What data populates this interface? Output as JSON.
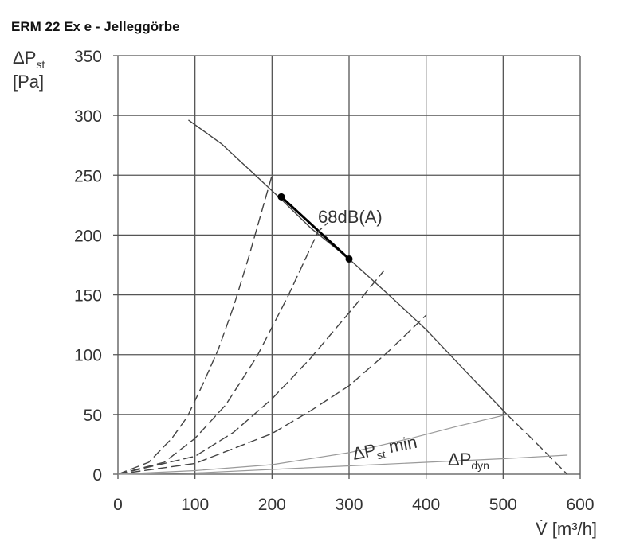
{
  "page_title": "ERM 22 Ex e - Jelleggörbe",
  "chart_data": {
    "type": "line",
    "title": "ERM 22 Ex e - Jelleggörbe",
    "xlabel": "V̇ [m³/h]",
    "ylabel": {
      "main": "ΔP",
      "sub": "st",
      "unit": "[Pa]"
    },
    "xlim": [
      0,
      600
    ],
    "ylim": [
      0,
      350
    ],
    "xticks": [
      0,
      100,
      200,
      300,
      400,
      500,
      600
    ],
    "yticks": [
      0,
      50,
      100,
      150,
      200,
      250,
      300,
      350
    ],
    "grid": true,
    "series": [
      {
        "key": "fan",
        "style": "solid",
        "color": "#444444",
        "width": 1.4,
        "x": [
          92,
          135,
          175,
          215,
          250,
          300,
          350,
          400,
          450,
          505
        ],
        "y": [
          296,
          276,
          252,
          228,
          206,
          180,
          151,
          121,
          87,
          50
        ]
      },
      {
        "key": "fan_ext",
        "style": "dashed",
        "color": "#444444",
        "width": 1.4,
        "x": [
          505,
          540,
          583
        ],
        "y": [
          50,
          28,
          0
        ]
      },
      {
        "key": "operating_range",
        "style": "solid",
        "color": "#000000",
        "width": 3,
        "x": [
          212,
          300
        ],
        "y": [
          232,
          180
        ]
      },
      {
        "key": "sys1",
        "style": "dashed",
        "color": "#444444",
        "width": 1.4,
        "x": [
          0,
          40,
          70,
          90,
          110,
          130,
          150,
          170,
          200
        ],
        "y": [
          0,
          10,
          30,
          48,
          75,
          104,
          140,
          182,
          250
        ]
      },
      {
        "key": "sys2",
        "style": "dashed",
        "color": "#444444",
        "width": 1.4,
        "x": [
          0,
          60,
          100,
          140,
          180,
          220,
          260,
          272
        ],
        "y": [
          0,
          10,
          30,
          58,
          98,
          148,
          203,
          210
        ]
      },
      {
        "key": "sys3",
        "style": "dashed",
        "color": "#444444",
        "width": 1.4,
        "x": [
          0,
          100,
          150,
          200,
          250,
          300,
          345
        ],
        "y": [
          0,
          15,
          35,
          63,
          97,
          135,
          170
        ]
      },
      {
        "key": "sys4",
        "style": "dashed",
        "color": "#444444",
        "width": 1.4,
        "x": [
          0,
          100,
          200,
          250,
          300,
          350,
          400
        ],
        "y": [
          0,
          9,
          34,
          53,
          74,
          102,
          133
        ]
      },
      {
        "key": "dpst_min",
        "name": "ΔPst min",
        "style": "solid",
        "color": "#9a9a9a",
        "width": 1.2,
        "x": [
          0,
          100,
          200,
          300,
          380,
          440,
          505
        ],
        "y": [
          0,
          3,
          8,
          18,
          30,
          40,
          50
        ]
      },
      {
        "key": "dp_dyn",
        "name": "ΔPdyn",
        "style": "solid",
        "color": "#9a9a9a",
        "width": 1.2,
        "x": [
          0,
          100,
          200,
          300,
          400,
          500,
          583
        ],
        "y": [
          0,
          1,
          4,
          7,
          10,
          13,
          16
        ]
      }
    ],
    "markers": [
      {
        "x": 212,
        "y": 232
      },
      {
        "x": 300,
        "y": 180
      }
    ],
    "annotations": {
      "db": "68dB(A)",
      "dpst_min": {
        "main": "ΔP",
        "sub": "st",
        "rest": " min"
      },
      "dp_dyn": {
        "main": "ΔP",
        "sub": "dyn"
      }
    }
  }
}
